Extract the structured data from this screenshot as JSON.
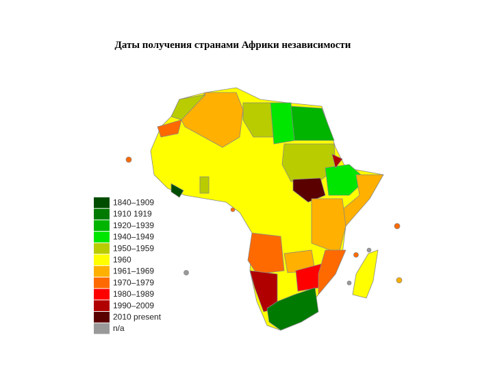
{
  "title": "Даты получения странами Африки независимости",
  "legend": [
    {
      "label": "1840–1909",
      "color": "#004d00"
    },
    {
      "label": "1910  1919",
      "color": "#007a00"
    },
    {
      "label": "1920–1939",
      "color": "#00b400"
    },
    {
      "label": "1940–1949",
      "color": "#00e600"
    },
    {
      "label": "1950–1959",
      "color": "#b9cc00"
    },
    {
      "label": "1960",
      "color": "#ffff00"
    },
    {
      "label": "1961–1969",
      "color": "#ffb000"
    },
    {
      "label": "1970–1979",
      "color": "#ff6a00"
    },
    {
      "label": "1980–1989",
      "color": "#ff0000"
    },
    {
      "label": "1990–2009",
      "color": "#b00000"
    },
    {
      "label": "2010 present",
      "color": "#5a0000"
    },
    {
      "label": "n/a",
      "color": "#999999"
    }
  ]
}
